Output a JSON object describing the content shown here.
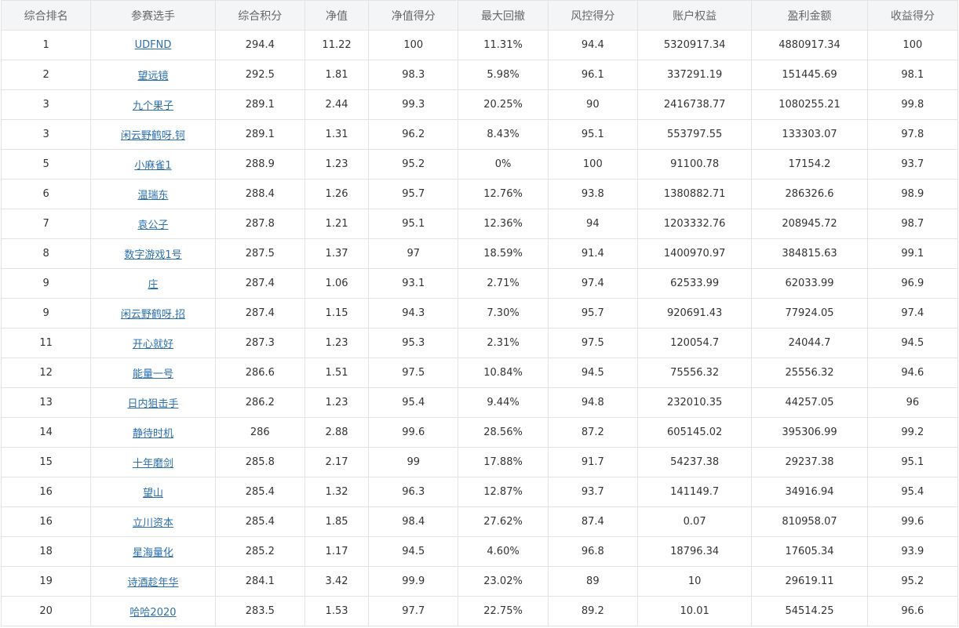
{
  "table": {
    "headers": [
      "综合排名",
      "参赛选手",
      "综合积分",
      "净值",
      "净值得分",
      "最大回撤",
      "风控得分",
      "账户权益",
      "盈利金额",
      "收益得分"
    ],
    "rows": [
      [
        "1",
        "UDFND",
        "294.4",
        "11.22",
        "100",
        "11.31%",
        "94.4",
        "5320917.34",
        "4880917.34",
        "100"
      ],
      [
        "2",
        "望远镜",
        "292.5",
        "1.81",
        "98.3",
        "5.98%",
        "96.1",
        "337291.19",
        "151445.69",
        "98.1"
      ],
      [
        "3",
        "九个果子",
        "289.1",
        "2.44",
        "99.3",
        "20.25%",
        "90",
        "2416738.77",
        "1080255.21",
        "99.8"
      ],
      [
        "3",
        "闲云野鹤呀.钶",
        "289.1",
        "1.31",
        "96.2",
        "8.43%",
        "95.1",
        "553797.55",
        "133303.07",
        "97.8"
      ],
      [
        "5",
        "小麻雀1",
        "288.9",
        "1.23",
        "95.2",
        "0%",
        "100",
        "91100.78",
        "17154.2",
        "93.7"
      ],
      [
        "6",
        "温瑞东",
        "288.4",
        "1.26",
        "95.7",
        "12.76%",
        "93.8",
        "1380882.71",
        "286326.6",
        "98.9"
      ],
      [
        "7",
        "袁公子",
        "287.8",
        "1.21",
        "95.1",
        "12.36%",
        "94",
        "1203332.76",
        "208945.72",
        "98.7"
      ],
      [
        "8",
        "数字游戏1号",
        "287.5",
        "1.37",
        "97",
        "18.59%",
        "91.4",
        "1400970.97",
        "384815.63",
        "99.1"
      ],
      [
        "9",
        "庄",
        "287.4",
        "1.06",
        "93.1",
        "2.71%",
        "97.4",
        "62533.99",
        "62033.99",
        "96.9"
      ],
      [
        "9",
        "闲云野鹤呀.招",
        "287.4",
        "1.15",
        "94.3",
        "7.30%",
        "95.7",
        "920691.43",
        "77924.05",
        "97.4"
      ],
      [
        "11",
        "开心就好",
        "287.3",
        "1.23",
        "95.3",
        "2.31%",
        "97.5",
        "120054.7",
        "24044.7",
        "94.5"
      ],
      [
        "12",
        "能量一号",
        "286.6",
        "1.51",
        "97.5",
        "10.84%",
        "94.5",
        "75556.32",
        "25556.32",
        "94.6"
      ],
      [
        "13",
        "日内狙击手",
        "286.2",
        "1.23",
        "95.4",
        "9.44%",
        "94.8",
        "232010.35",
        "44257.05",
        "96"
      ],
      [
        "14",
        "静待时机",
        "286",
        "2.88",
        "99.6",
        "28.56%",
        "87.2",
        "605145.02",
        "395306.99",
        "99.2"
      ],
      [
        "15",
        "十年磨剑",
        "285.8",
        "2.17",
        "99",
        "17.88%",
        "91.7",
        "54237.38",
        "29237.38",
        "95.1"
      ],
      [
        "16",
        "望山",
        "285.4",
        "1.32",
        "96.3",
        "12.87%",
        "93.7",
        "141149.7",
        "34916.94",
        "95.4"
      ],
      [
        "16",
        "立川资本",
        "285.4",
        "1.85",
        "98.4",
        "27.62%",
        "87.4",
        "0.07",
        "810958.07",
        "99.6"
      ],
      [
        "18",
        "星海量化",
        "285.2",
        "1.17",
        "94.5",
        "4.60%",
        "96.8",
        "18796.34",
        "17605.34",
        "93.9"
      ],
      [
        "19",
        "诗酒趁年华",
        "284.1",
        "3.42",
        "99.9",
        "23.02%",
        "89",
        "10",
        "29619.11",
        "95.2"
      ],
      [
        "20",
        "哈哈2020",
        "283.5",
        "1.53",
        "97.7",
        "22.75%",
        "89.2",
        "10.01",
        "54514.25",
        "96.6"
      ]
    ]
  }
}
